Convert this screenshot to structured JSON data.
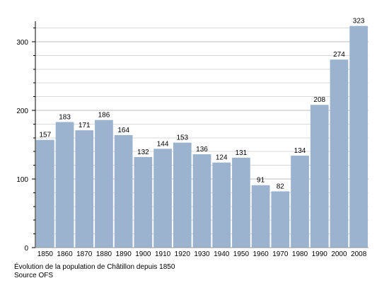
{
  "chart_data": {
    "type": "bar",
    "categories": [
      "1850",
      "1860",
      "1870",
      "1880",
      "1890",
      "1900",
      "1910",
      "1920",
      "1930",
      "1940",
      "1950",
      "1960",
      "1970",
      "1980",
      "1990",
      "2000",
      "2008"
    ],
    "values": [
      157,
      183,
      171,
      186,
      164,
      132,
      144,
      153,
      136,
      124,
      131,
      91,
      82,
      134,
      208,
      274,
      323
    ],
    "data_labels": [
      "157",
      "183",
      "171",
      "186",
      "164",
      "132",
      "144",
      "153",
      "136",
      "124",
      "131",
      "91",
      "82",
      "134",
      "208",
      "274",
      "323"
    ],
    "yticks": [
      "0",
      "100",
      "200",
      "300"
    ],
    "ylim": [
      0,
      330
    ],
    "grid": true,
    "title": "",
    "xlabel": "",
    "ylabel": "",
    "colors": {
      "bar": "#9bb3cf",
      "grid": "#d9d9d9",
      "axis": "#000000"
    }
  },
  "caption": {
    "title": "Évolution de la population de Châtillon depuis 1850",
    "source": "Source OFS"
  }
}
